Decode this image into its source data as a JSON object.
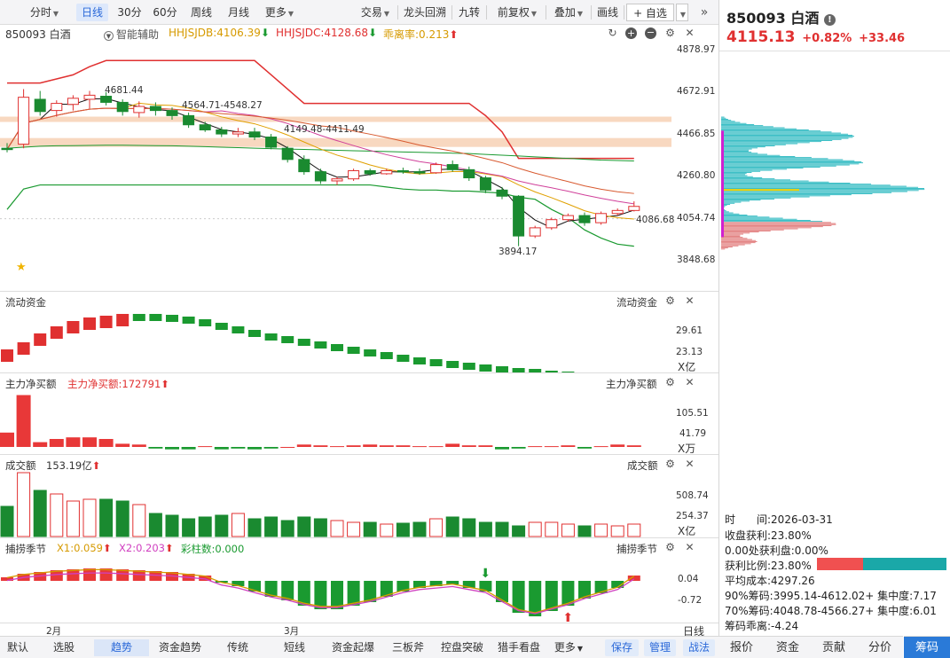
{
  "toolbar": {
    "items": [
      {
        "label": "分时",
        "dropdown": true
      },
      {
        "label": "日线",
        "active": true
      },
      {
        "label": "30分"
      },
      {
        "label": "60分"
      },
      {
        "label": "周线"
      },
      {
        "label": "月线"
      },
      {
        "label": "更多",
        "dropdown": true
      },
      {
        "label": "交易",
        "dropdown": true
      },
      {
        "label": "龙头回溯"
      },
      {
        "label": "九转"
      },
      {
        "label": "前复权",
        "dropdown": true
      },
      {
        "label": "叠加",
        "dropdown": true
      },
      {
        "label": "画线"
      },
      {
        "label": "+ 自选"
      }
    ]
  },
  "main": {
    "code_name": "850093 白酒",
    "assist_label": "智能辅助",
    "hhjsjdb": "HHJSJDB:4106.39",
    "hhjsjdc": "HHJSJDC:4128.68",
    "guaililv": "乖离率:0.213",
    "y_labels": [
      "4878.97",
      "4672.91",
      "4466.85",
      "4260.80",
      "4054.74",
      "3848.68"
    ],
    "current_label": "4086.68",
    "annotations": {
      "high": "4681.44",
      "low": "3894.17",
      "range1": "4564.71-4548.27",
      "range2": "4149.48-4411.49"
    },
    "x_labels": [
      "2月",
      "3月"
    ],
    "ohlc": [
      [
        4400,
        4425,
        4380,
        4395
      ],
      [
        4420,
        4690,
        4400,
        4650
      ],
      [
        4640,
        4681,
        4560,
        4580
      ],
      [
        4585,
        4635,
        4555,
        4620
      ],
      [
        4615,
        4660,
        4585,
        4645
      ],
      [
        4640,
        4681,
        4595,
        4660
      ],
      [
        4655,
        4675,
        4610,
        4625
      ],
      [
        4625,
        4640,
        4560,
        4580
      ],
      [
        4575,
        4630,
        4550,
        4605
      ],
      [
        4605,
        4625,
        4560,
        4585
      ],
      [
        4585,
        4600,
        4540,
        4560
      ],
      [
        4560,
        4575,
        4500,
        4515
      ],
      [
        4515,
        4530,
        4480,
        4490
      ],
      [
        4490,
        4505,
        4455,
        4470
      ],
      [
        4470,
        4500,
        4455,
        4480
      ],
      [
        4480,
        4500,
        4440,
        4455
      ],
      [
        4455,
        4470,
        4395,
        4405
      ],
      [
        4400,
        4410,
        4330,
        4345
      ],
      [
        4345,
        4365,
        4270,
        4285
      ],
      [
        4285,
        4300,
        4225,
        4240
      ],
      [
        4240,
        4260,
        4220,
        4250
      ],
      [
        4250,
        4300,
        4240,
        4290
      ],
      [
        4290,
        4300,
        4265,
        4275
      ],
      [
        4275,
        4300,
        4270,
        4290
      ],
      [
        4290,
        4305,
        4275,
        4285
      ],
      [
        4285,
        4300,
        4270,
        4280
      ],
      [
        4280,
        4330,
        4275,
        4320
      ],
      [
        4320,
        4340,
        4285,
        4295
      ],
      [
        4295,
        4310,
        4240,
        4255
      ],
      [
        4255,
        4265,
        4180,
        4195
      ],
      [
        4195,
        4210,
        4150,
        4165
      ],
      [
        4165,
        4170,
        3920,
        3970
      ],
      [
        3970,
        4020,
        3960,
        4010
      ],
      [
        4010,
        4060,
        4000,
        4050
      ],
      [
        4050,
        4080,
        4040,
        4070
      ],
      [
        4070,
        4085,
        4020,
        4035
      ],
      [
        4035,
        4090,
        4025,
        4080
      ],
      [
        4080,
        4105,
        4070,
        4095
      ],
      [
        4095,
        4140,
        4090,
        4115
      ]
    ],
    "ma_colors": [
      "#111111",
      "#e0a000",
      "#d0409a",
      "#d85a30"
    ],
    "upper_band_color": "#e03030",
    "lower_band_color": "#1a9a30",
    "band_color": "#f8d8c0"
  },
  "panels": {
    "liudong": {
      "title": "流动资金",
      "rt_title": "流动资金",
      "labels": [
        "29.61",
        "23.13"
      ],
      "unit": "X亿"
    },
    "zhuli": {
      "title": "主力净买额",
      "value": "主力净买额:172791",
      "rt_title": "主力净买额",
      "labels": [
        "105.51",
        "41.79"
      ],
      "unit": "X万"
    },
    "chengjiao": {
      "title": "成交额",
      "value": "153.19亿",
      "rt_title": "成交额",
      "labels": [
        "508.74",
        "254.37"
      ],
      "unit": "X亿"
    },
    "bulao": {
      "title": "捕捞季节",
      "x1": "X1:0.059",
      "x2": "X2:0.203",
      "caizhu": "彩柱数:0.000",
      "rt_title": "捕捞季节",
      "labels": [
        "0.04",
        "-0.72"
      ]
    }
  },
  "period_label": "日线",
  "bottom": {
    "tabs": [
      "默认",
      "选股",
      "趋势",
      "资金趋势",
      "传统",
      "短线",
      "资金起爆",
      "三板斧",
      "控盘突破",
      "猎手看盘",
      "更多"
    ],
    "active": "趋势",
    "buttons": [
      "保存",
      "管理",
      "战法"
    ]
  },
  "right": {
    "title": "850093 白酒",
    "price": "4115.13",
    "pct": "+0.82%",
    "chg": "+33.46",
    "info": {
      "time_label": "时　　间:2026-03-31",
      "profit_close": "收盘获利:23.80%",
      "profit_at": "0.00处获利盘:0.00%",
      "profit_ratio": "获利比例:23.80%",
      "avg_cost": "平均成本:4297.26",
      "chip90": "90%筹码:3995.14-4612.02+ 集中度:7.17",
      "chip70": "70%筹码:4048.78-4566.27+ 集中度:6.01",
      "deviation": "筹码乖离:-4.24"
    },
    "profit_ratio_value": 0.238,
    "tabs": [
      "报价",
      "资金",
      "贡献",
      "分价",
      "筹码"
    ],
    "active_tab": "筹码"
  }
}
